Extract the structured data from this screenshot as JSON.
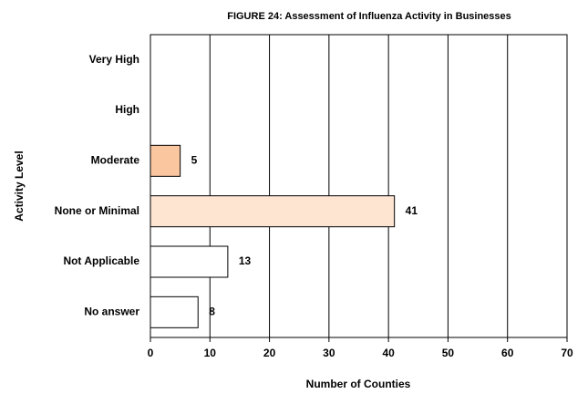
{
  "chart_data": {
    "type": "hbar",
    "title": "FIGURE 24: Assessment of Influenza Activity in Businesses",
    "x_label": "Number of Counties",
    "y_label": "Activity Level",
    "categories": [
      "Very High",
      "High",
      "Moderate",
      "None or Minimal",
      "Not Applicable",
      "No answer"
    ],
    "values": [
      null,
      null,
      5,
      41,
      13,
      8
    ],
    "colors": [
      null,
      null,
      "#f9c6a0",
      "#fde5d2",
      "#ffffff",
      "#ffffff"
    ],
    "xlim": [
      0,
      70
    ],
    "xticks": [
      0,
      10,
      20,
      30,
      40,
      50,
      60,
      70
    ],
    "grid": true
  }
}
